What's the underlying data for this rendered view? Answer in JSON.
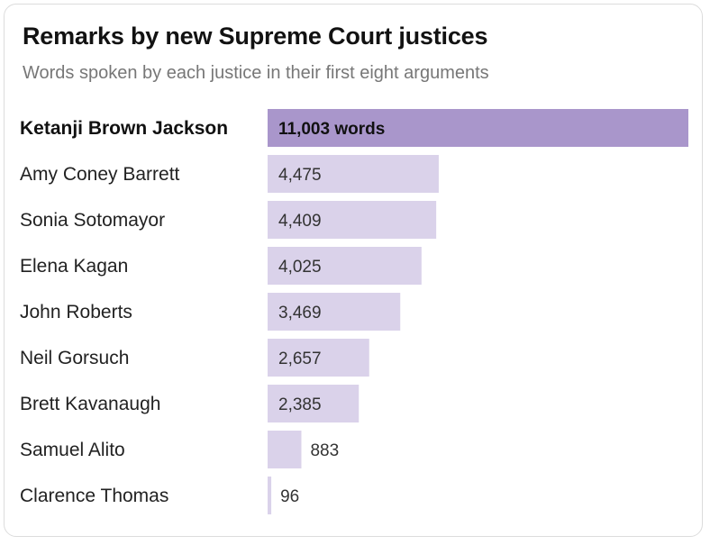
{
  "header": {
    "title": "Remarks by new Supreme Court justices",
    "subtitle": "Words spoken by each justice in their first eight arguments"
  },
  "colors": {
    "highlight_bar": "#a996cb",
    "bar": "#dad2ea",
    "text": "#222222"
  },
  "chart_data": {
    "type": "bar",
    "orientation": "horizontal",
    "title": "Remarks by new Supreme Court justices",
    "subtitle": "Words spoken by each justice in their first eight arguments",
    "categories": [
      "Ketanji Brown Jackson",
      "Amy Coney Barrett",
      "Sonia Sotomayor",
      "Elena Kagan",
      "John Roberts",
      "Neil Gorsuch",
      "Brett Kavanaugh",
      "Samuel Alito",
      "Clarence Thomas"
    ],
    "values": [
      11003,
      4475,
      4409,
      4025,
      3469,
      2657,
      2385,
      883,
      96
    ],
    "value_labels": [
      "11,003 words",
      "4,475",
      "4,409",
      "4,025",
      "3,469",
      "2,657",
      "2,385",
      "883",
      "96"
    ],
    "highlighted": "Ketanji Brown Jackson",
    "xlim": [
      0,
      11003
    ],
    "grid": false,
    "legend": "none"
  }
}
